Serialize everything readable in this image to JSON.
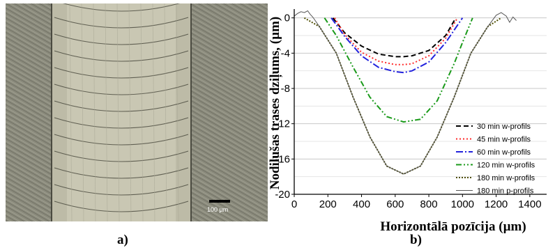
{
  "panels": {
    "a": "a)",
    "b": "b)"
  },
  "micrograph": {
    "scale_bar_label": "100 µm"
  },
  "colors": {
    "background": "#ffffff",
    "micro_outer": "#7a7a6e",
    "micro_track": "#c8c6b2",
    "crack_lines": "#3c3c32"
  },
  "chart_data": {
    "type": "line",
    "xlabel": "Horizontālā pozīcija (µm)",
    "ylabel": "Nodilušas trases dziļums, (µm)",
    "xlim": [
      0,
      1500
    ],
    "ylim": [
      -20,
      1
    ],
    "xticks": [
      0,
      200,
      400,
      600,
      800,
      1000,
      1200,
      1400
    ],
    "yticks": [
      0,
      -4,
      -8,
      -12,
      -16,
      -20
    ],
    "grid": "horizontal",
    "legend_position": "right",
    "series": [
      {
        "name": "30 min w-profils",
        "color": "#000000",
        "dash": "7,4",
        "x": [
          230,
          300,
          400,
          500,
          600,
          650,
          700,
          800,
          900,
          960
        ],
        "y": [
          0,
          -1.7,
          -3.2,
          -4.1,
          -4.4,
          -4.4,
          -4.3,
          -3.7,
          -2.0,
          0
        ]
      },
      {
        "name": "45 min w-profils",
        "color": "#ff2a2a",
        "dash": "2,3",
        "x": [
          240,
          300,
          400,
          500,
          600,
          650,
          700,
          800,
          900,
          970
        ],
        "y": [
          0,
          -1.9,
          -3.9,
          -4.9,
          -5.3,
          -5.3,
          -5.2,
          -4.3,
          -2.3,
          0
        ]
      },
      {
        "name": "60 min w-profils",
        "color": "#2222dd",
        "dash": "10,3,2,3",
        "x": [
          220,
          300,
          400,
          500,
          600,
          650,
          700,
          800,
          900,
          1000
        ],
        "y": [
          0,
          -2.1,
          -4.3,
          -5.6,
          -6.1,
          -6.2,
          -6.0,
          -5.0,
          -2.8,
          0
        ]
      },
      {
        "name": "120 min w-profils",
        "color": "#1a9a1a",
        "dash": "8,3,2,3,2,3",
        "x": [
          180,
          250,
          350,
          450,
          550,
          650,
          750,
          850,
          950,
          1000,
          1060
        ],
        "y": [
          0,
          -2.0,
          -5.6,
          -9.0,
          -11.2,
          -11.8,
          -11.5,
          -9.4,
          -5.2,
          -2.8,
          0
        ]
      },
      {
        "name": "180 min w-profils",
        "color": "#4d4d00",
        "dash": "2,2",
        "x": [
          60,
          150,
          250,
          350,
          450,
          550,
          650,
          750,
          850,
          950,
          1050,
          1150,
          1230
        ],
        "y": [
          0,
          -1.0,
          -4.0,
          -9.0,
          -13.5,
          -16.8,
          -17.7,
          -16.8,
          -13.5,
          -9.0,
          -4.0,
          -1.0,
          0
        ]
      },
      {
        "name": "180 min p-profils",
        "color": "#555555",
        "dash": "",
        "x": [
          0,
          20,
          40,
          60,
          80,
          95,
          110,
          150,
          250,
          350,
          450,
          550,
          650,
          750,
          850,
          950,
          1050,
          1150,
          1200,
          1230,
          1260,
          1280,
          1300,
          1320
        ],
        "y": [
          0.2,
          0.5,
          0.7,
          0.6,
          0.8,
          0.4,
          0.1,
          -1.0,
          -4.0,
          -9.0,
          -13.5,
          -16.8,
          -17.7,
          -16.8,
          -13.5,
          -9.0,
          -4.0,
          -1.0,
          0.3,
          0.6,
          0.2,
          -0.5,
          0.1,
          -0.3
        ]
      }
    ]
  }
}
